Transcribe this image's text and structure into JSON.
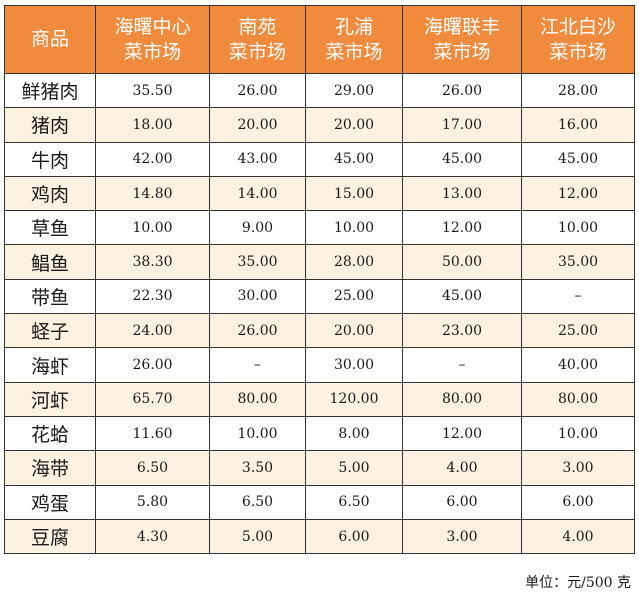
{
  "table": {
    "header": {
      "item_label": "商品",
      "markets": [
        {
          "line1": "海曙中心",
          "line2": "菜市场"
        },
        {
          "line1": "南苑",
          "line2": "菜市场"
        },
        {
          "line1": "孔浦",
          "line2": "菜市场"
        },
        {
          "line1": "海曙联丰",
          "line2": "菜市场"
        },
        {
          "line1": "江北白沙",
          "line2": "菜市场"
        }
      ]
    },
    "rows": [
      {
        "item": "鲜猪肉",
        "prices": [
          "35.50",
          "26.00",
          "29.00",
          "26.00",
          "28.00"
        ]
      },
      {
        "item": "猪肉",
        "prices": [
          "18.00",
          "20.00",
          "20.00",
          "17.00",
          "16.00"
        ]
      },
      {
        "item": "牛肉",
        "prices": [
          "42.00",
          "43.00",
          "45.00",
          "45.00",
          "45.00"
        ]
      },
      {
        "item": "鸡肉",
        "prices": [
          "14.80",
          "14.00",
          "15.00",
          "13.00",
          "12.00"
        ]
      },
      {
        "item": "草鱼",
        "prices": [
          "10.00",
          "9.00",
          "10.00",
          "12.00",
          "10.00"
        ]
      },
      {
        "item": "鲳鱼",
        "prices": [
          "38.30",
          "35.00",
          "28.00",
          "50.00",
          "35.00"
        ]
      },
      {
        "item": "带鱼",
        "prices": [
          "22.30",
          "30.00",
          "25.00",
          "45.00",
          "–"
        ]
      },
      {
        "item": "蛏子",
        "prices": [
          "24.00",
          "26.00",
          "20.00",
          "23.00",
          "25.00"
        ]
      },
      {
        "item": "海虾",
        "prices": [
          "26.00",
          "–",
          "30.00",
          "–",
          "40.00"
        ]
      },
      {
        "item": "河虾",
        "prices": [
          "65.70",
          "80.00",
          "120.00",
          "80.00",
          "80.00"
        ]
      },
      {
        "item": "花蛤",
        "prices": [
          "11.60",
          "10.00",
          "8.00",
          "12.00",
          "10.00"
        ]
      },
      {
        "item": "海带",
        "prices": [
          "6.50",
          "3.50",
          "5.00",
          "4.00",
          "3.00"
        ]
      },
      {
        "item": "鸡蛋",
        "prices": [
          "5.80",
          "6.50",
          "6.50",
          "6.00",
          "6.00"
        ]
      },
      {
        "item": "豆腐",
        "prices": [
          "4.30",
          "5.00",
          "6.00",
          "3.00",
          "4.00"
        ]
      }
    ]
  },
  "unit_note": "单位：元/500 克",
  "colors": {
    "header_bg": "#f08a3c",
    "header_text": "#ffffff",
    "stripe_bg": "#fdf1e2",
    "border": "#333333"
  }
}
